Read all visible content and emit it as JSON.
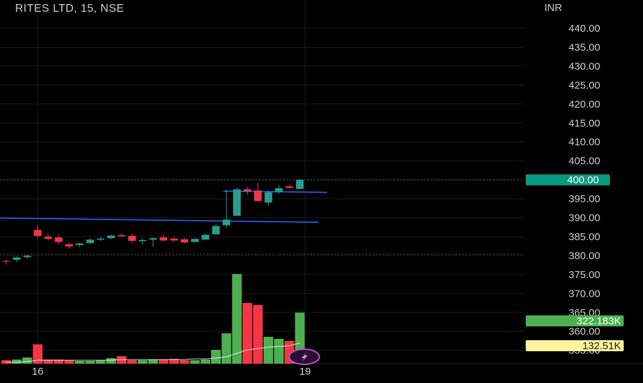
{
  "header": {
    "title": "RITES LTD, 15, NSE",
    "currency": "INR"
  },
  "colors": {
    "background": "#000000",
    "grid": "#1c1c1c",
    "up": "#2a9d8f",
    "up_volume": "#4caf50",
    "down": "#f23645",
    "trendline": "#2962ff",
    "volume_ma": "#ffffff",
    "price_badge": "#089981",
    "volume_badge": "#4caf50",
    "vol_ma_badge": "#fff59d"
  },
  "chart_data": {
    "type": "candlestick",
    "title": "RITES LTD, 15, NSE",
    "ylabel": "INR",
    "ylim": [
      351,
      443
    ],
    "yticks": [
      "440.00",
      "435.00",
      "430.00",
      "425.00",
      "420.00",
      "415.00",
      "410.00",
      "405.00",
      "400.00",
      "395.00",
      "390.00",
      "385.00",
      "380.00",
      "375.00",
      "370.00",
      "365.00",
      "360.00",
      "355.00"
    ],
    "xtick_labels": [
      "16",
      "19"
    ],
    "candles": [
      {
        "o": 378.6,
        "h": 379.0,
        "l": 377.6,
        "c": 378.4
      },
      {
        "o": 378.9,
        "h": 379.8,
        "l": 378.3,
        "c": 379.5
      },
      {
        "o": 379.6,
        "h": 380.2,
        "l": 379.2,
        "c": 380.0
      },
      {
        "o": 386.8,
        "h": 388.0,
        "l": 384.6,
        "c": 385.2
      },
      {
        "o": 385.0,
        "h": 385.9,
        "l": 384.2,
        "c": 384.4
      },
      {
        "o": 384.8,
        "h": 385.5,
        "l": 383.0,
        "c": 383.6
      },
      {
        "o": 383.0,
        "h": 383.6,
        "l": 381.8,
        "c": 382.4
      },
      {
        "o": 382.8,
        "h": 383.4,
        "l": 382.2,
        "c": 383.2
      },
      {
        "o": 383.3,
        "h": 384.6,
        "l": 383.0,
        "c": 384.2
      },
      {
        "o": 384.2,
        "h": 384.9,
        "l": 383.8,
        "c": 384.5
      },
      {
        "o": 384.6,
        "h": 385.6,
        "l": 384.3,
        "c": 385.3
      },
      {
        "o": 385.4,
        "h": 385.9,
        "l": 384.9,
        "c": 385.1
      },
      {
        "o": 385.2,
        "h": 385.8,
        "l": 383.3,
        "c": 383.9
      },
      {
        "o": 383.8,
        "h": 384.5,
        "l": 383.0,
        "c": 384.1
      },
      {
        "o": 384.2,
        "h": 384.8,
        "l": 382.3,
        "c": 384.6
      },
      {
        "o": 384.8,
        "h": 385.5,
        "l": 383.7,
        "c": 384.0
      },
      {
        "o": 384.5,
        "h": 385.0,
        "l": 383.6,
        "c": 384.0
      },
      {
        "o": 384.3,
        "h": 384.7,
        "l": 383.2,
        "c": 383.5
      },
      {
        "o": 383.6,
        "h": 384.6,
        "l": 383.5,
        "c": 384.4
      },
      {
        "o": 384.2,
        "h": 385.7,
        "l": 384.2,
        "c": 385.5
      },
      {
        "o": 385.6,
        "h": 388.3,
        "l": 385.6,
        "c": 387.8
      },
      {
        "o": 388.0,
        "h": 397.4,
        "l": 387.3,
        "c": 389.5
      },
      {
        "o": 390.5,
        "h": 398.0,
        "l": 390.5,
        "c": 397.5
      },
      {
        "o": 397.5,
        "h": 398.0,
        "l": 396.0,
        "c": 397.0
      },
      {
        "o": 397.2,
        "h": 399.2,
        "l": 394.3,
        "c": 394.4
      },
      {
        "o": 394.0,
        "h": 397.3,
        "l": 393.1,
        "c": 396.7
      },
      {
        "o": 396.8,
        "h": 398.6,
        "l": 396.3,
        "c": 397.8
      },
      {
        "o": 398.3,
        "h": 398.7,
        "l": 397.6,
        "c": 397.9
      },
      {
        "o": 397.6,
        "h": 400.3,
        "l": 397.6,
        "c": 400.0
      }
    ],
    "volume": [
      5,
      6,
      9,
      28,
      6,
      6,
      5,
      4,
      4,
      5,
      8,
      11,
      5,
      5,
      6,
      6,
      7,
      5,
      5,
      6,
      20,
      44,
      130,
      88,
      85,
      39,
      36,
      33,
      74
    ],
    "volume_ma": [
      2,
      2,
      3,
      5,
      5,
      5,
      5,
      5,
      5,
      5,
      5,
      6,
      6,
      6,
      6,
      6,
      6,
      6,
      7,
      7,
      8,
      10,
      15,
      20,
      22,
      24,
      25,
      26,
      30
    ],
    "trendlines": [
      {
        "name": "support",
        "from": {
          "bar": -2.9,
          "price": 390.0
        },
        "to": {
          "bar": 29.8,
          "price": 388.8
        }
      },
      {
        "name": "resistance",
        "from": {
          "bar": 20.7,
          "price": 397.0
        },
        "to": {
          "bar": 30.6,
          "price": 396.7
        }
      }
    ],
    "dotted_levels": [
      400.0,
      380.4
    ],
    "last_price": {
      "value": 400.0,
      "label": "400.00"
    },
    "volume_last": {
      "label": "322.183K"
    },
    "volume_ma_last": {
      "label": "132.51K"
    },
    "x_labels": [
      {
        "text": "16",
        "bar": 3.0
      },
      {
        "text": "19",
        "bar": 28.5
      }
    ]
  }
}
